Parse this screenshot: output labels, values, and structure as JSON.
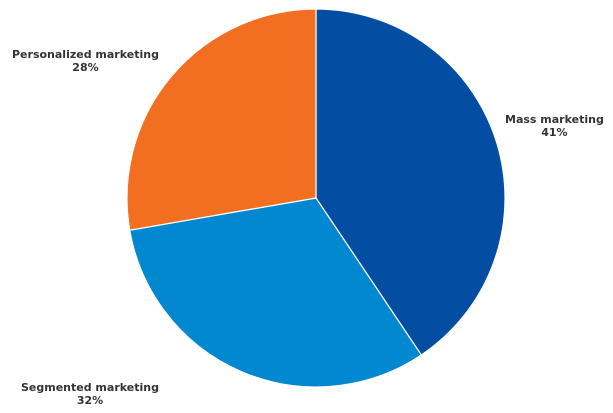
{
  "chart_data": {
    "type": "pie",
    "title": "",
    "slices": [
      {
        "label": "Mass marketing",
        "value": 41,
        "value_label": "41%",
        "color": "#034ea2"
      },
      {
        "label": "Segmented marketing",
        "value": 32,
        "value_label": "32%",
        "color": "#0288d1"
      },
      {
        "label": "Personalized marketing",
        "value": 28,
        "value_label": "28%",
        "color": "#f26f21"
      }
    ],
    "start_angle_deg": 0,
    "direction": "clockwise",
    "legend": "none"
  }
}
